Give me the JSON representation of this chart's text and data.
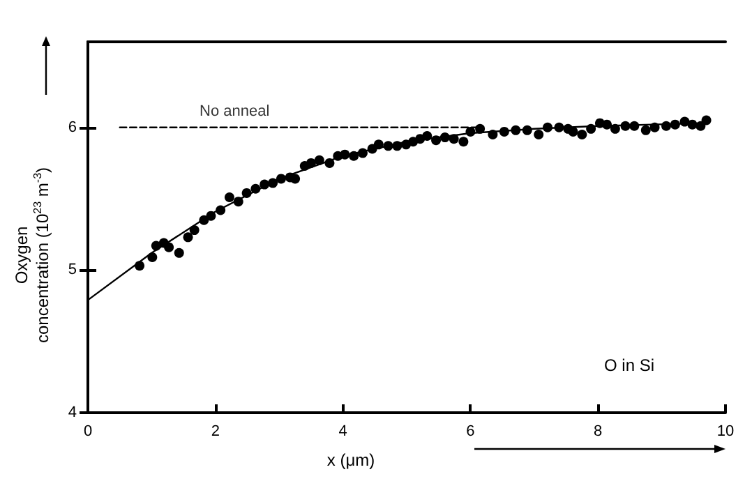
{
  "chart_data": {
    "type": "scatter",
    "xlabel": "x (μm)",
    "ylabel": "Oxygen concentration (10$^{23}$ m$^{-3}$)",
    "xlim": [
      0,
      10
    ],
    "ylim": [
      4,
      6.6
    ],
    "xticks": [
      0,
      2,
      4,
      6,
      8,
      10
    ],
    "yticks": [
      4,
      5,
      6
    ],
    "marker": "circle",
    "annotations": [
      {
        "text": "No anneal",
        "x": 2.3,
        "y": 6
      },
      "O in Si"
    ],
    "series": [
      {
        "color": "#000000",
        "x": [
          0.81,
          1.01,
          1.07,
          1.19,
          1.27,
          1.43,
          1.57,
          1.67,
          1.82,
          1.93,
          2.08,
          2.22,
          2.36,
          2.49,
          2.63,
          2.77,
          2.9,
          3.03,
          3.17,
          3.25,
          3.4,
          3.5,
          3.63,
          3.79,
          3.92,
          4.03,
          4.17,
          4.31,
          4.46,
          4.56,
          4.71,
          4.85,
          4.99,
          5.1,
          5.21,
          5.32,
          5.46,
          5.6,
          5.74,
          5.89,
          6.0,
          6.15,
          6.35,
          6.53,
          6.71,
          6.89,
          7.07,
          7.21,
          7.39,
          7.53,
          7.61,
          7.75,
          7.89,
          8.03,
          8.14,
          8.27,
          8.43,
          8.57,
          8.75,
          8.89,
          9.07,
          9.21,
          9.36,
          9.48,
          9.61,
          9.7
        ],
        "values": [
          5.03,
          5.09,
          5.17,
          5.19,
          5.16,
          5.12,
          5.23,
          5.28,
          5.35,
          5.38,
          5.42,
          5.51,
          5.48,
          5.54,
          5.57,
          5.6,
          5.61,
          5.64,
          5.65,
          5.64,
          5.73,
          5.75,
          5.77,
          5.75,
          5.8,
          5.81,
          5.8,
          5.82,
          5.85,
          5.88,
          5.87,
          5.87,
          5.88,
          5.9,
          5.92,
          5.94,
          5.91,
          5.93,
          5.92,
          5.9,
          5.97,
          5.99,
          5.95,
          5.97,
          5.98,
          5.98,
          5.95,
          6.0,
          6.0,
          5.99,
          5.97,
          5.95,
          5.99,
          6.03,
          6.02,
          5.99,
          6.01,
          6.01,
          5.98,
          6.0,
          6.01,
          6.02,
          6.04,
          6.02,
          6.01,
          6.05
        ]
      },
      {
        "type": "line",
        "color": "#000000",
        "marker": "none",
        "line_style": "solid",
        "x": [
          0,
          1,
          2,
          3,
          4,
          5,
          6,
          7,
          8,
          9.7
        ],
        "values": [
          4.79,
          5.12,
          5.41,
          5.64,
          5.8,
          5.9,
          5.96,
          5.99,
          6.01,
          6.03
        ]
      },
      {
        "type": "line",
        "color": "#000000",
        "marker": "none",
        "line_style": "dashed",
        "x": [
          0.5,
          6.1
        ],
        "values": [
          6,
          6
        ]
      }
    ]
  }
}
